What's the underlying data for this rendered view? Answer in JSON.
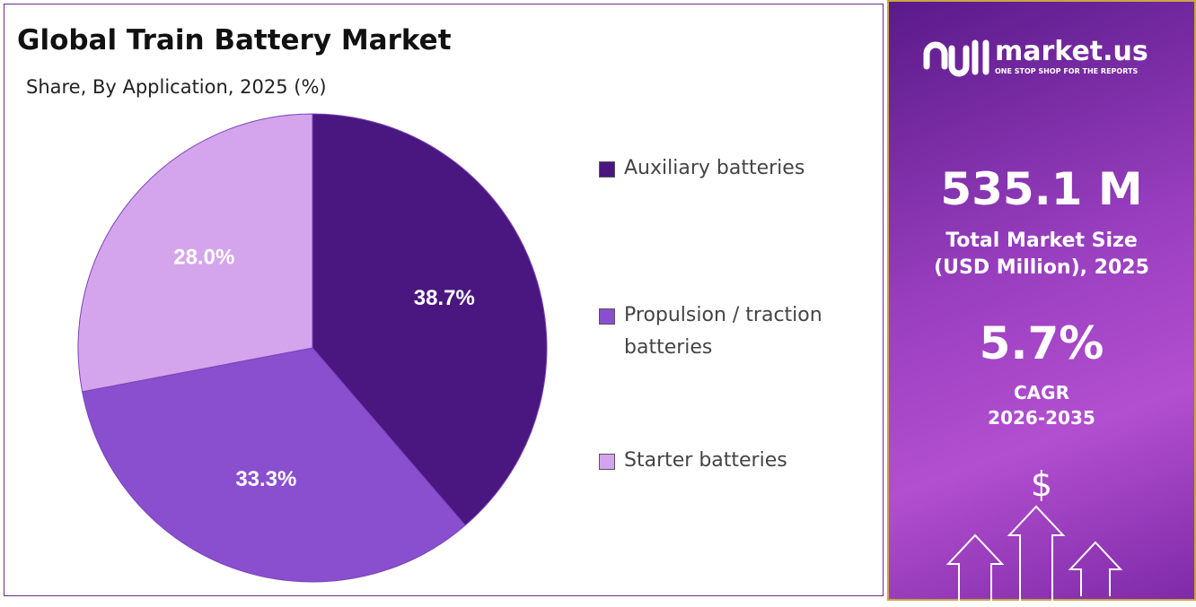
{
  "chart_data": {
    "type": "pie",
    "title": "Global Train Battery Market",
    "subtitle": "Share, By Application, 2025 (%)",
    "categories": [
      "Auxiliary batteries",
      "Propulsion / traction batteries",
      "Starter batteries"
    ],
    "values": [
      38.7,
      33.3,
      28.0
    ],
    "value_labels": [
      "38.7%",
      "33.3%",
      "28.0%"
    ],
    "colors": [
      "#4a1780",
      "#8a4fcf",
      "#d4a5ec"
    ],
    "legend": "right"
  },
  "sidebar": {
    "brand": "market.us",
    "tagline": "ONE STOP SHOP FOR THE REPORTS",
    "market_size": "535.1 M",
    "market_size_label": "Total Market Size (USD Million), 2025",
    "cagr": "5.7%",
    "cagr_label": "CAGR",
    "cagr_period": "2026-2035",
    "currency_symbol": "$"
  }
}
